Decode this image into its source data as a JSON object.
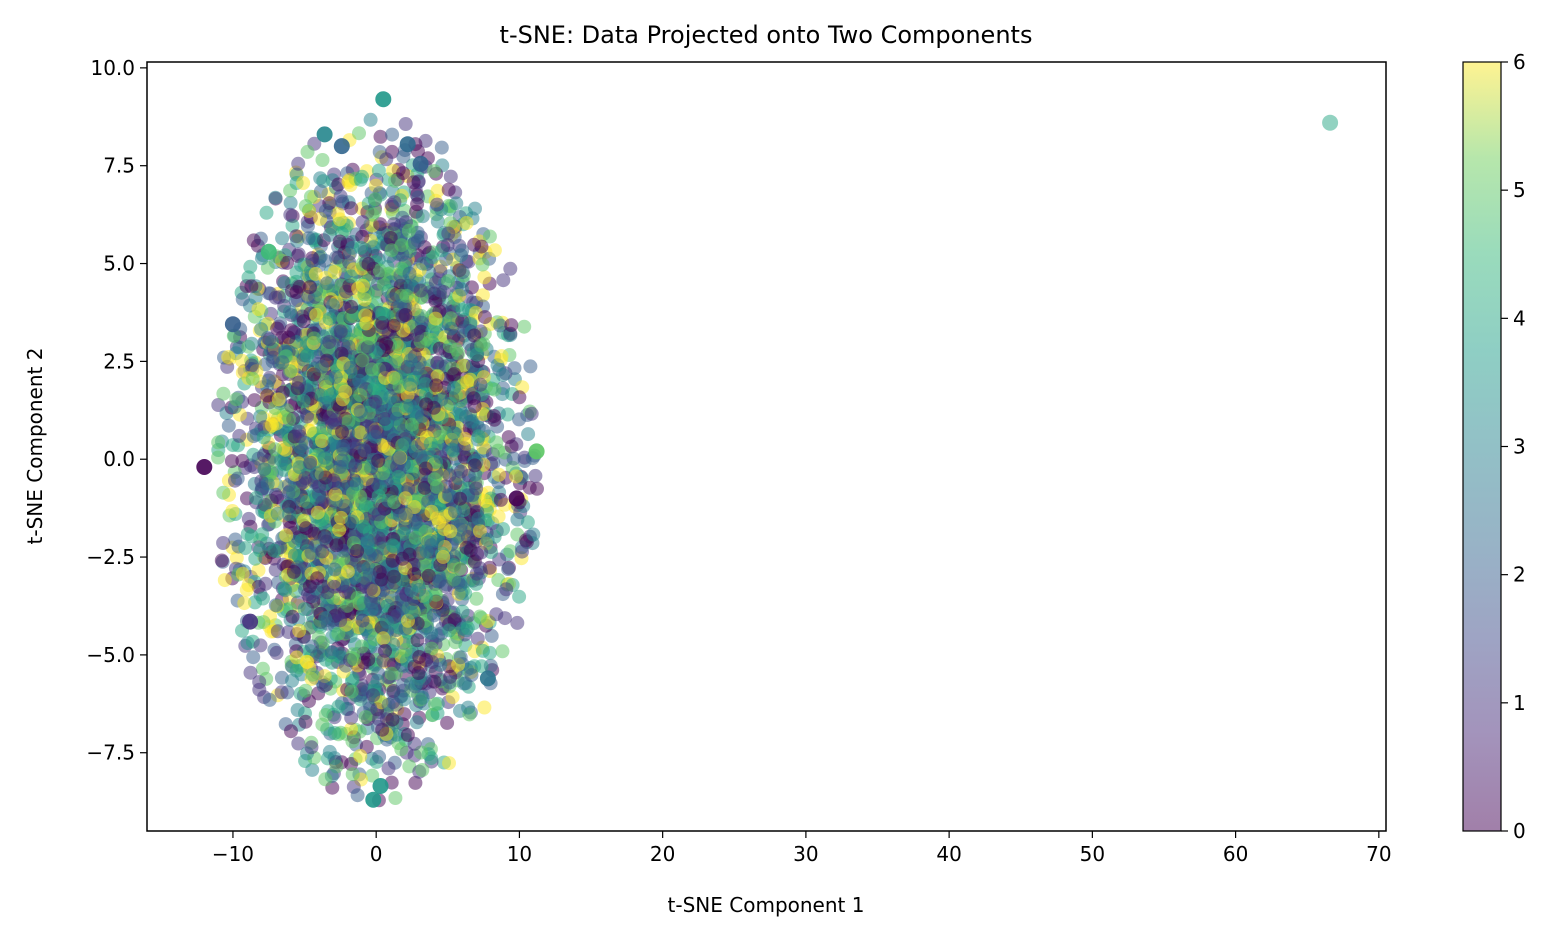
{
  "chart_data": {
    "type": "scatter",
    "title": "t-SNE: Data Projected onto Two Components",
    "xlabel": "t-SNE Component 1",
    "ylabel": "t-SNE Component 2",
    "xlim": [
      -16,
      70.5
    ],
    "ylim": [
      -9.5,
      10.15
    ],
    "xticks": [
      -10,
      0,
      10,
      20,
      30,
      40,
      50,
      60,
      70
    ],
    "xtick_labels": [
      "−10",
      "0",
      "10",
      "20",
      "30",
      "40",
      "50",
      "60",
      "70"
    ],
    "yticks": [
      -7.5,
      -5.0,
      -2.5,
      0.0,
      2.5,
      5.0,
      7.5,
      10.0
    ],
    "ytick_labels": [
      "−7.5",
      "−5.0",
      "−2.5",
      "0.0",
      "2.5",
      "5.0",
      "7.5",
      "10.0"
    ],
    "grid": false,
    "colormap": "viridis",
    "point_alpha": 0.5,
    "colorbar": {
      "range": [
        0,
        6
      ],
      "ticks": [
        0,
        1,
        2,
        3,
        4,
        5,
        6
      ],
      "tick_labels": [
        "0",
        "1",
        "2",
        "3",
        "4",
        "5",
        "6"
      ]
    },
    "cluster": {
      "center": [
        0.0,
        0.0
      ],
      "x_extent": [
        -12,
        11.2
      ],
      "y_extent": [
        -8.7,
        9.2
      ],
      "note_values": "dense cloud of points with class values 0-6 spread evenly"
    },
    "points": [
      {
        "x": 66.6,
        "y": 8.6,
        "c": 4
      },
      {
        "x": 0.5,
        "y": 9.2,
        "c": 3.6
      },
      {
        "x": -3.6,
        "y": 8.3,
        "c": 3.1
      },
      {
        "x": -2.4,
        "y": 8.0,
        "c": 2.2
      },
      {
        "x": 2.2,
        "y": 8.05,
        "c": 2.3
      },
      {
        "x": 3.1,
        "y": 7.55,
        "c": 2.1
      },
      {
        "x": -12.0,
        "y": -0.2,
        "c": 0
      },
      {
        "x": 11.2,
        "y": 0.2,
        "c": 5
      },
      {
        "x": -8.8,
        "y": -4.15,
        "c": 1
      },
      {
        "x": -0.2,
        "y": -8.7,
        "c": 3.6
      },
      {
        "x": 0.3,
        "y": -8.35,
        "c": 3.6
      },
      {
        "x": -10.0,
        "y": 3.45,
        "c": 2
      },
      {
        "x": -7.5,
        "y": 5.3,
        "c": 4.6
      },
      {
        "x": 7.8,
        "y": -5.6,
        "c": 2.6
      },
      {
        "x": 9.8,
        "y": -1.0,
        "c": 0
      }
    ],
    "random_cluster_count": 4200
  }
}
